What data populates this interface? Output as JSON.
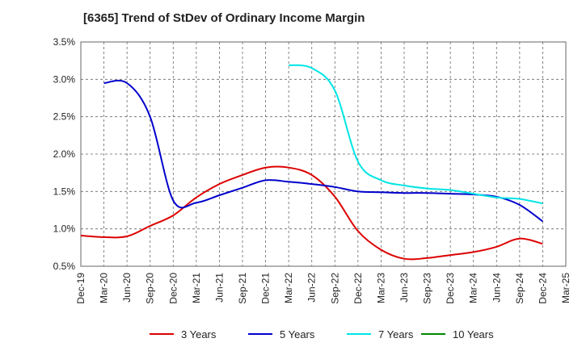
{
  "chart_data": {
    "type": "line",
    "title": "[6365]  Trend of StDev of Ordinary Income Margin",
    "xlabel": "",
    "ylabel": "",
    "y_ticks": [
      "0.5%",
      "1.0%",
      "1.5%",
      "2.0%",
      "2.5%",
      "3.0%",
      "3.5%"
    ],
    "ylim": [
      0.5,
      3.5
    ],
    "x_ticks": [
      "Dec-19",
      "Mar-20",
      "Jun-20",
      "Sep-20",
      "Dec-20",
      "Mar-21",
      "Jun-21",
      "Sep-21",
      "Dec-21",
      "Mar-22",
      "Jun-22",
      "Sep-22",
      "Dec-22",
      "Mar-23",
      "Jun-23",
      "Sep-23",
      "Dec-23",
      "Mar-24",
      "Jun-24",
      "Sep-24",
      "Dec-24",
      "Mar-25"
    ],
    "grid": "horizontal-and-vertical-dashed",
    "legend_position": "bottom",
    "series": [
      {
        "name": "3 Years",
        "color": "#dd0000",
        "values": [
          0.91,
          0.89,
          0.9,
          1.04,
          1.18,
          1.42,
          1.6,
          1.72,
          1.82,
          1.82,
          1.72,
          1.43,
          0.97,
          0.72,
          0.6,
          0.61,
          0.65,
          0.69,
          0.76,
          0.87,
          0.8,
          null
        ]
      },
      {
        "name": "5 Years",
        "color": "#0000cc",
        "values": [
          null,
          2.95,
          2.95,
          2.5,
          1.38,
          1.35,
          1.45,
          1.55,
          1.65,
          1.63,
          1.6,
          1.56,
          1.5,
          1.49,
          1.48,
          1.48,
          1.47,
          1.46,
          1.43,
          1.32,
          1.1,
          null
        ]
      },
      {
        "name": "7 Years",
        "color": "#00e5e5",
        "values": [
          null,
          null,
          null,
          null,
          null,
          null,
          null,
          null,
          null,
          3.19,
          3.15,
          2.85,
          1.9,
          1.65,
          1.58,
          1.54,
          1.52,
          1.47,
          1.42,
          1.4,
          1.34,
          null
        ]
      },
      {
        "name": "10 Years",
        "color": "#008800",
        "values": []
      }
    ]
  }
}
